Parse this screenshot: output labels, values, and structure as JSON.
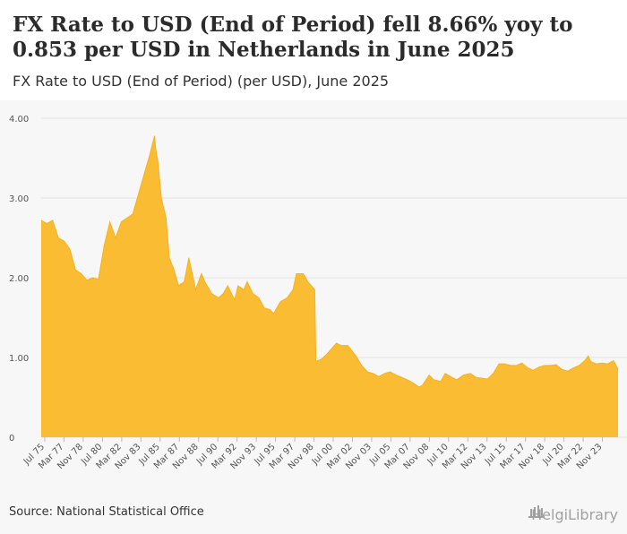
{
  "title": "FX Rate to USD (End of Period) fell 8.66% yoy to 0.853 per USD in Netherlands in June 2025",
  "subtitle": "FX Rate to USD (End of Period) (per USD), June 2025",
  "source": "Source: National Statistical Office",
  "brand": "HelgiLibrary",
  "colors": {
    "fill": "#f9bc32",
    "stroke": "#f5b21f",
    "grid": "#e3e3e3",
    "axis_text": "#555555"
  },
  "chart_data": {
    "type": "area",
    "title": "FX Rate to USD (End of Period) (per USD)",
    "xlabel": "",
    "ylabel": "",
    "ylim": [
      0,
      4
    ],
    "yticks": [
      "0",
      "1.00",
      "2.00",
      "3.00",
      "4.00"
    ],
    "xticks": [
      "Jul 75",
      "Mar 77",
      "Nov 78",
      "Jul 80",
      "Mar 82",
      "Nov 83",
      "Jul 85",
      "Mar 87",
      "Nov 88",
      "Jul 90",
      "Mar 92",
      "Nov 93",
      "Jul 95",
      "Mar 97",
      "Nov 98",
      "Jul 00",
      "Mar 02",
      "Nov 03",
      "Jul 05",
      "Mar 07",
      "Nov 08",
      "Jul 10",
      "Mar 12",
      "Nov 13",
      "Jul 15",
      "Mar 17",
      "Nov 18",
      "Jul 20",
      "Mar 22",
      "Nov 23"
    ],
    "series": [
      {
        "name": "FX Rate to USD (End of Period)",
        "x": [
          1975.0,
          1975.5,
          1976.0,
          1976.5,
          1977.0,
          1977.5,
          1978.0,
          1978.5,
          1979.0,
          1979.5,
          1980.0,
          1980.5,
          1981.0,
          1981.5,
          1982.0,
          1982.5,
          1983.0,
          1983.5,
          1984.0,
          1984.5,
          1984.9,
          1985.0,
          1985.2,
          1985.5,
          1985.9,
          1986.2,
          1986.6,
          1987.0,
          1987.5,
          1987.9,
          1988.5,
          1989.0,
          1989.3,
          1989.9,
          1990.5,
          1990.9,
          1991.3,
          1991.9,
          1992.2,
          1992.7,
          1993.0,
          1993.5,
          1994.0,
          1994.5,
          1995.0,
          1995.3,
          1995.9,
          1996.5,
          1997.0,
          1997.3,
          1997.9,
          1998.3,
          1998.9,
          1999.0,
          1999.5,
          2000.0,
          2000.8,
          2001.2,
          2001.8,
          2002.5,
          2003.0,
          2003.5,
          2004.0,
          2004.5,
          2005.0,
          2005.5,
          2006.0,
          2006.5,
          2007.0,
          2007.5,
          2008.0,
          2008.3,
          2008.9,
          2009.3,
          2009.9,
          2010.3,
          2010.9,
          2011.3,
          2011.9,
          2012.5,
          2013.0,
          2013.5,
          2014.0,
          2014.5,
          2015.0,
          2015.5,
          2016.0,
          2016.5,
          2017.0,
          2017.5,
          2018.0,
          2018.5,
          2019.0,
          2019.5,
          2020.0,
          2020.5,
          2021.0,
          2021.5,
          2022.0,
          2022.5,
          2022.8,
          2023.0,
          2023.5,
          2024.0,
          2024.5,
          2025.0,
          2025.4
        ],
        "values": [
          2.72,
          2.68,
          2.72,
          2.5,
          2.46,
          2.36,
          2.1,
          2.05,
          1.97,
          2.0,
          1.98,
          2.4,
          2.7,
          2.5,
          2.7,
          2.75,
          2.8,
          3.05,
          3.3,
          3.55,
          3.78,
          3.62,
          3.45,
          3.0,
          2.75,
          2.25,
          2.1,
          1.9,
          1.95,
          2.25,
          1.85,
          2.05,
          1.95,
          1.8,
          1.75,
          1.8,
          1.9,
          1.72,
          1.9,
          1.85,
          1.95,
          1.8,
          1.75,
          1.62,
          1.6,
          1.55,
          1.7,
          1.75,
          1.85,
          2.05,
          2.05,
          1.95,
          1.85,
          0.95,
          0.98,
          1.05,
          1.18,
          1.15,
          1.15,
          1.02,
          0.9,
          0.82,
          0.8,
          0.76,
          0.8,
          0.82,
          0.78,
          0.75,
          0.72,
          0.68,
          0.63,
          0.65,
          0.78,
          0.72,
          0.7,
          0.8,
          0.75,
          0.72,
          0.78,
          0.8,
          0.75,
          0.74,
          0.73,
          0.8,
          0.92,
          0.92,
          0.9,
          0.9,
          0.93,
          0.87,
          0.84,
          0.88,
          0.9,
          0.9,
          0.91,
          0.85,
          0.83,
          0.87,
          0.9,
          0.96,
          1.02,
          0.95,
          0.92,
          0.93,
          0.92,
          0.96,
          0.853
        ]
      }
    ]
  }
}
